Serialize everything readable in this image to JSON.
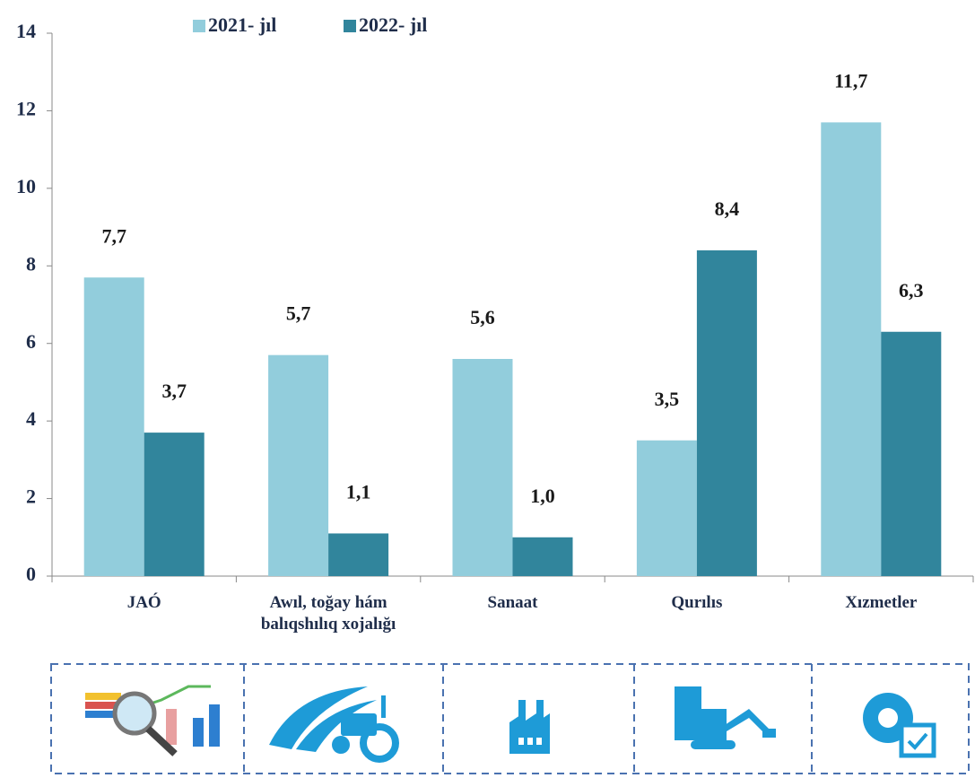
{
  "chart_data": {
    "type": "bar",
    "categories": [
      "JAÓ",
      "Awıl, toğay hám balıqshılıq xojalığı",
      "Sanaat",
      "Qurılıs",
      "Xızmetler"
    ],
    "series": [
      {
        "name": "2021- jıl",
        "color": "#92cddc",
        "values": [
          7.7,
          5.7,
          5.6,
          3.5,
          11.7
        ],
        "value_labels": [
          "7,7",
          "5,7",
          "5,6",
          "3,5",
          "11,7"
        ]
      },
      {
        "name": "2022- jıl",
        "color": "#31859c",
        "values": [
          3.7,
          1.1,
          1.0,
          8.4,
          6.3
        ],
        "value_labels": [
          "3,7",
          "1,1",
          "1,0",
          "8,4",
          "6,3"
        ]
      }
    ],
    "ylim": [
      0,
      14
    ],
    "yticks": [
      0,
      2,
      4,
      6,
      8,
      10,
      12,
      14
    ],
    "grid": false,
    "legend": "top"
  }
}
